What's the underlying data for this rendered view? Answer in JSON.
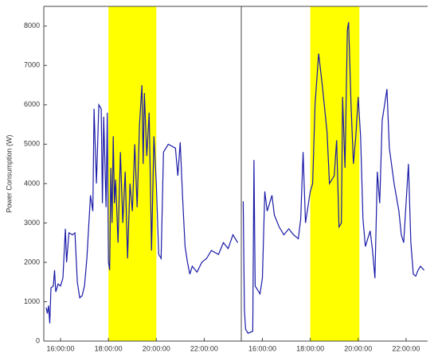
{
  "chart_data": [
    {
      "type": "line",
      "y_label": "Power Consumption (W)",
      "xlim": [
        15.3,
        23.55
      ],
      "ylim": [
        0,
        8500
      ],
      "xticks": [
        {
          "value": 16,
          "label": "16:00:00"
        },
        {
          "value": 18,
          "label": "18:00:00"
        },
        {
          "value": 20,
          "label": "20:00:00"
        },
        {
          "value": 22,
          "label": "22:00:00"
        }
      ],
      "yticks": [
        0,
        1000,
        2000,
        3000,
        4000,
        5000,
        6000,
        7000,
        8000
      ],
      "highlight": [
        18,
        20
      ],
      "highlight_color": "#ffff00",
      "series": [
        {
          "color": "#1a1aa8",
          "x": [
            15.4,
            15.45,
            15.5,
            15.55,
            15.6,
            15.7,
            15.75,
            15.8,
            15.9,
            16.0,
            16.1,
            16.2,
            16.25,
            16.35,
            16.5,
            16.6,
            16.7,
            16.8,
            16.9,
            17.0,
            17.1,
            17.25,
            17.35,
            17.4,
            17.5,
            17.6,
            17.7,
            17.75,
            17.8,
            17.9,
            17.95,
            18.0,
            18.05,
            18.1,
            18.15,
            18.2,
            18.25,
            18.3,
            18.4,
            18.5,
            18.6,
            18.7,
            18.8,
            18.9,
            19.0,
            19.1,
            19.2,
            19.3,
            19.4,
            19.45,
            19.5,
            19.6,
            19.7,
            19.8,
            19.9,
            20.0,
            20.1,
            20.2,
            20.3,
            20.5,
            20.8,
            20.9,
            21.0,
            21.1,
            21.2,
            21.3,
            21.4,
            21.5,
            21.7,
            21.9,
            22.1,
            22.3,
            22.6,
            22.8,
            23.0,
            23.2,
            23.4
          ],
          "values": [
            850,
            700,
            900,
            450,
            1350,
            1400,
            1800,
            1250,
            1450,
            1400,
            1600,
            2850,
            2000,
            2750,
            2700,
            2750,
            1500,
            1100,
            1150,
            1400,
            2100,
            3700,
            3300,
            5900,
            4000,
            6000,
            5900,
            3500,
            5700,
            3400,
            5800,
            2000,
            1800,
            4400,
            3000,
            5200,
            3500,
            4100,
            2500,
            4800,
            3000,
            4300,
            2100,
            4000,
            3300,
            5000,
            3400,
            5500,
            6500,
            4500,
            6300,
            4700,
            5800,
            2300,
            5200,
            4000,
            2200,
            2100,
            4800,
            5000,
            4900,
            4200,
            5050,
            3600,
            2400,
            2000,
            1700,
            1900,
            1750,
            2000,
            2100,
            2300,
            2200,
            2500,
            2350,
            2700,
            2500
          ]
        }
      ]
    },
    {
      "type": "line",
      "xlim": [
        15.12,
        22.9
      ],
      "ylim": [
        0,
        8500
      ],
      "xticks": [
        {
          "value": 16,
          "label": "16:00:00"
        },
        {
          "value": 18,
          "label": "18:00:00"
        },
        {
          "value": 20,
          "label": "20:00:00"
        },
        {
          "value": 22,
          "label": "22:00:00"
        }
      ],
      "highlight": [
        18,
        20.05
      ],
      "highlight_color": "#ffff00",
      "series": [
        {
          "color": "#1a1aa8",
          "x": [
            15.2,
            15.25,
            15.3,
            15.4,
            15.6,
            15.65,
            15.7,
            15.9,
            16.0,
            16.1,
            16.2,
            16.4,
            16.5,
            16.7,
            16.9,
            17.1,
            17.3,
            17.5,
            17.6,
            17.7,
            17.8,
            18.0,
            18.1,
            18.2,
            18.35,
            18.5,
            18.7,
            18.8,
            19.0,
            19.1,
            19.2,
            19.3,
            19.35,
            19.45,
            19.55,
            19.6,
            19.7,
            19.8,
            19.9,
            20.0,
            20.1,
            20.2,
            20.3,
            20.5,
            20.6,
            20.7,
            20.8,
            20.9,
            21.0,
            21.2,
            21.3,
            21.5,
            21.7,
            21.8,
            21.9,
            22.0,
            22.1,
            22.2,
            22.3,
            22.4,
            22.5,
            22.6,
            22.75
          ],
          "values": [
            3550,
            800,
            300,
            200,
            250,
            4600,
            1400,
            1200,
            1600,
            3800,
            3300,
            3700,
            3200,
            2900,
            2700,
            2850,
            2700,
            2600,
            3100,
            4800,
            3000,
            3800,
            4000,
            6000,
            7300,
            6500,
            5300,
            4000,
            4200,
            5100,
            2900,
            3000,
            6200,
            4400,
            7900,
            8100,
            6000,
            4500,
            5200,
            6200,
            5200,
            3100,
            2400,
            2800,
            2300,
            1600,
            4300,
            3500,
            5600,
            6400,
            4900,
            4000,
            3300,
            2700,
            2500,
            3500,
            4500,
            2500,
            1700,
            1650,
            1800,
            1900,
            1800
          ]
        }
      ]
    }
  ]
}
